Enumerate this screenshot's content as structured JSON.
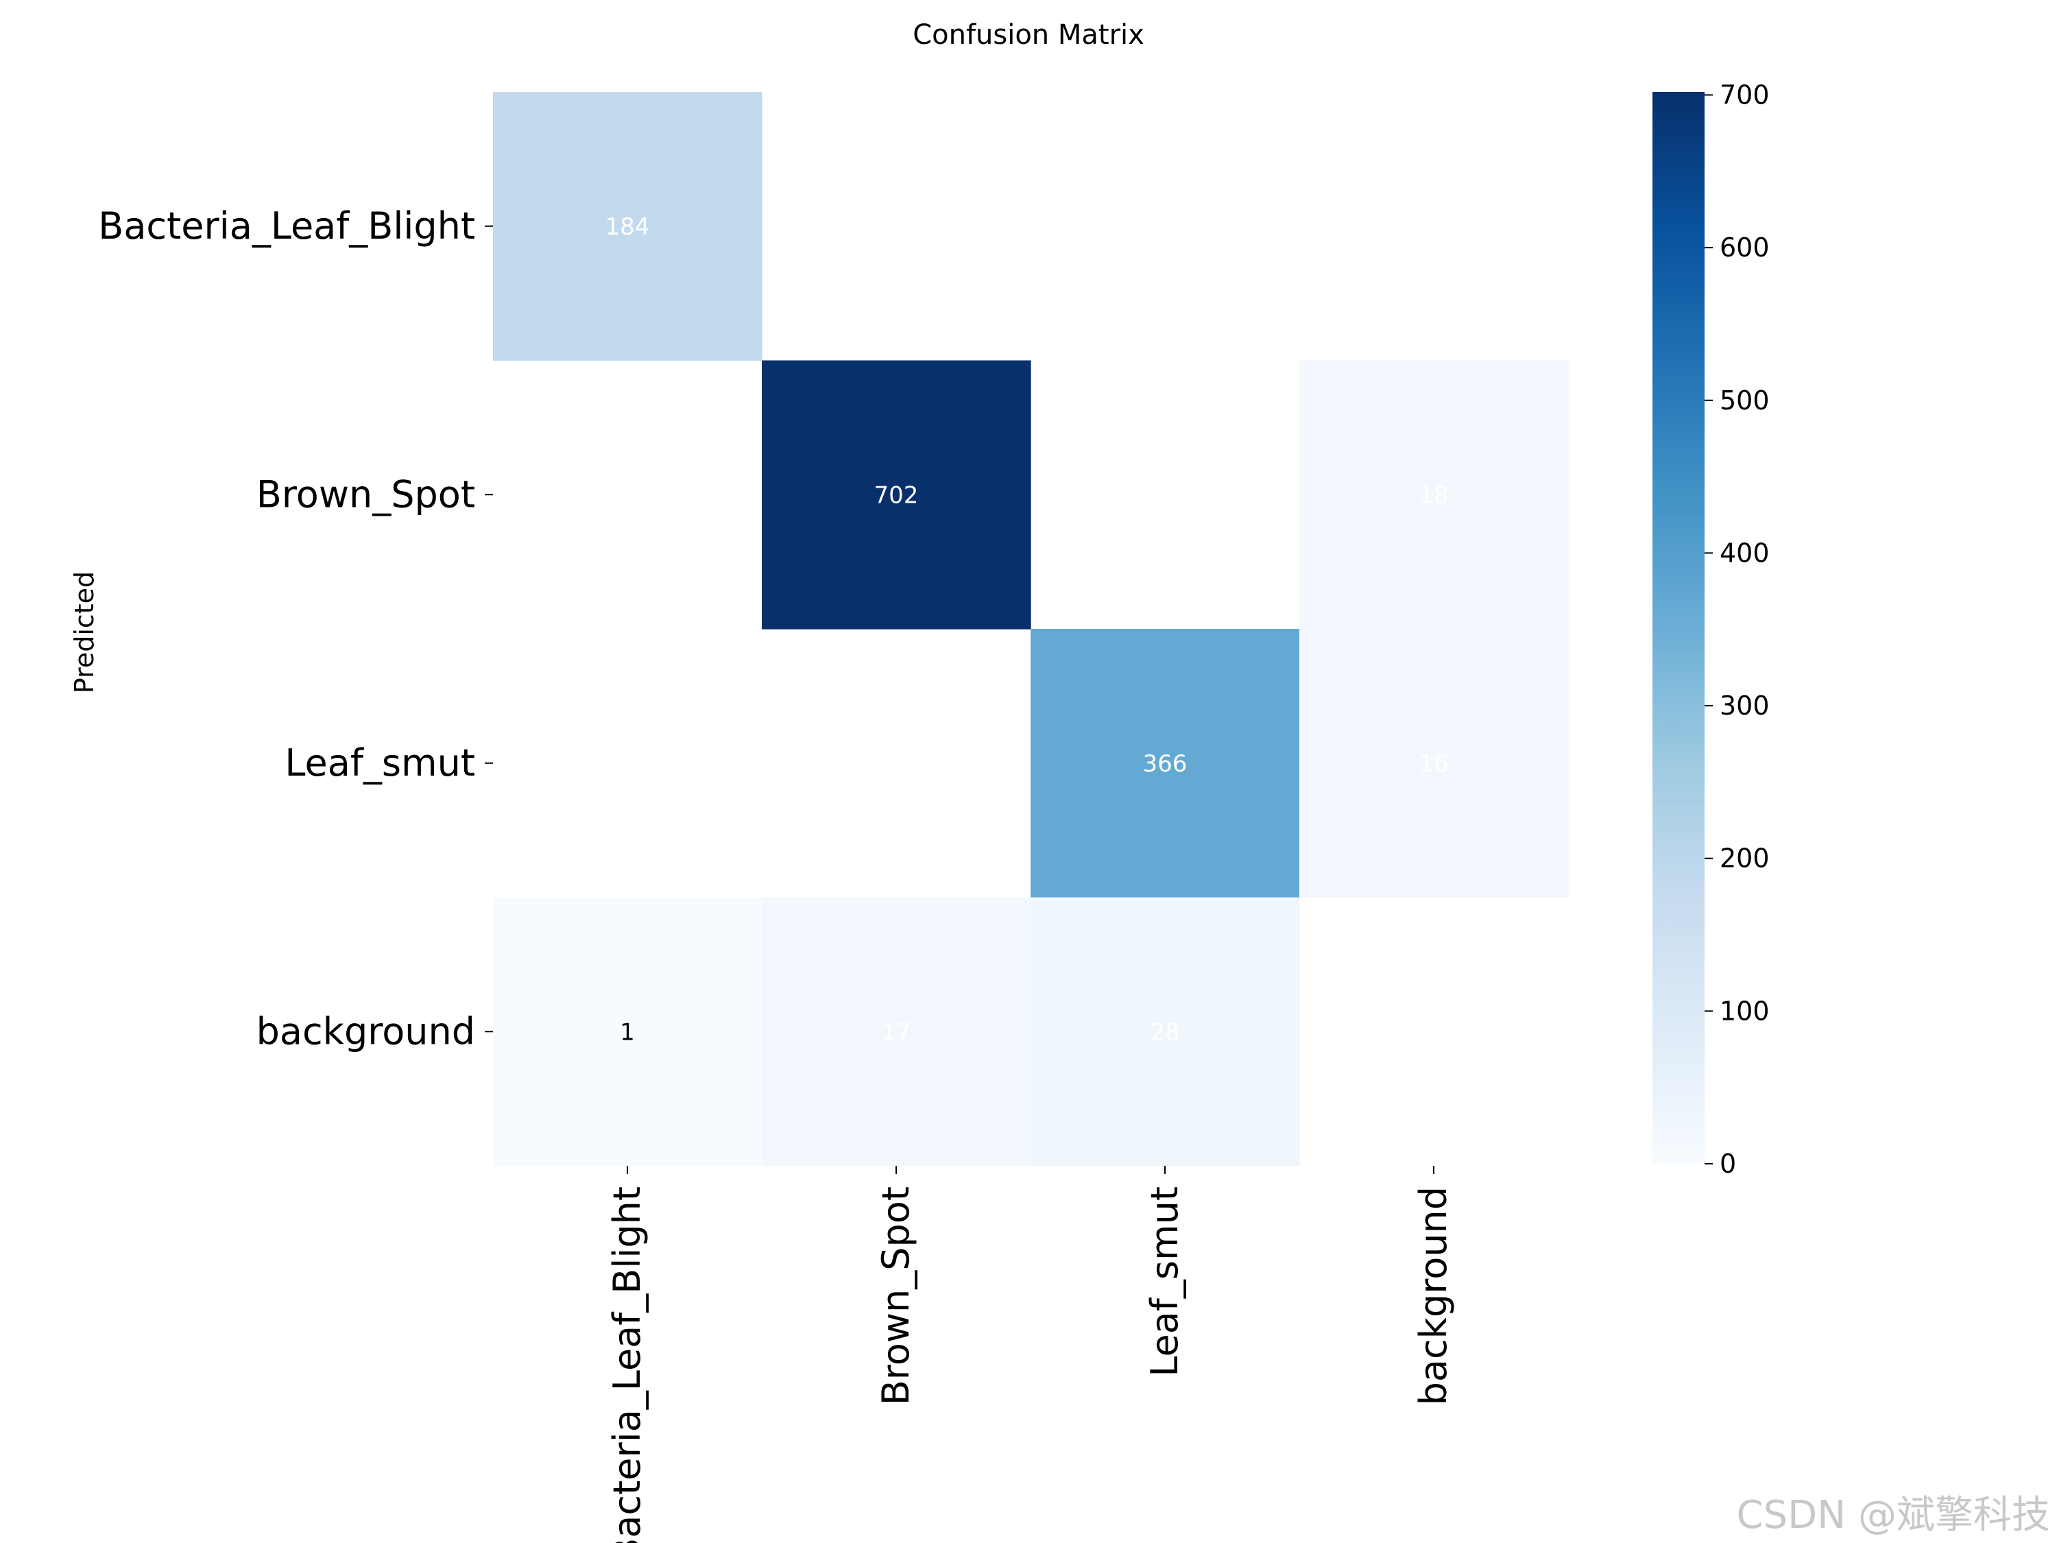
{
  "chart_data": {
    "type": "heatmap",
    "title": "Confusion Matrix",
    "xlabel": "",
    "ylabel": "Predicted",
    "row_labels": [
      "Bacteria_Leaf_Blight",
      "Brown_Spot",
      "Leaf_smut",
      "background"
    ],
    "col_labels": [
      "Bacteria_Leaf_Blight",
      "Brown_Spot",
      "Leaf_smut",
      "background"
    ],
    "values": [
      [
        184,
        null,
        null,
        null
      ],
      [
        null,
        702,
        null,
        18
      ],
      [
        null,
        null,
        366,
        16
      ],
      [
        1,
        17,
        28,
        null
      ]
    ],
    "colormap": "Blues",
    "color_range": [
      0,
      702
    ],
    "colorbar": {
      "ticks": [
        0,
        100,
        200,
        300,
        400,
        500,
        600,
        700
      ]
    }
  },
  "colors": {
    "background": "#ffffff",
    "text": "#000000",
    "cell_text_light": "#ffffff",
    "cell_text_dark": "#000000"
  },
  "watermark": "CSDN @斌擎科技"
}
